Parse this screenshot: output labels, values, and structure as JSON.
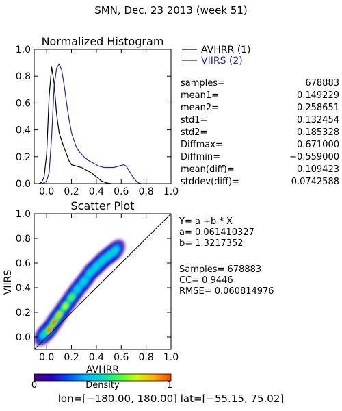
{
  "title": "SMN,  Dec. 23 2013 (week 51)",
  "colors": {
    "avhrr": "#000000",
    "viirs": "#2020c0",
    "axis": "#000000"
  },
  "chart_data": [
    {
      "type": "line",
      "title": "Normalized Histogram",
      "xlabel": "",
      "ylabel": "",
      "xlim": [
        -0.1,
        1.0
      ],
      "ylim": [
        0.0,
        1.0
      ],
      "xticks": [
        "0.0",
        "0.2",
        "0.4",
        "0.6",
        "0.8",
        "1.0"
      ],
      "yticks": [
        "0.0",
        "0.2",
        "0.4",
        "0.6",
        "0.8",
        "1.0"
      ],
      "legend_position": "right",
      "series": [
        {
          "name": "AVHRR (1)",
          "x": [
            -0.06,
            -0.04,
            -0.02,
            0.0,
            0.02,
            0.04,
            0.06,
            0.08,
            0.1,
            0.12,
            0.14,
            0.16,
            0.18,
            0.2,
            0.24,
            0.28,
            0.32,
            0.36,
            0.4,
            0.44,
            0.48,
            0.52
          ],
          "y": [
            0.0,
            0.01,
            0.05,
            0.22,
            0.65,
            0.87,
            0.75,
            0.52,
            0.38,
            0.32,
            0.27,
            0.22,
            0.17,
            0.14,
            0.13,
            0.12,
            0.1,
            0.08,
            0.05,
            0.02,
            0.005,
            0.0
          ]
        },
        {
          "name": "VIIRS (2)",
          "x": [
            -0.04,
            -0.02,
            0.0,
            0.02,
            0.04,
            0.06,
            0.08,
            0.1,
            0.12,
            0.14,
            0.16,
            0.18,
            0.2,
            0.22,
            0.24,
            0.26,
            0.28,
            0.3,
            0.34,
            0.38,
            0.42,
            0.46,
            0.5,
            0.54,
            0.58,
            0.62,
            0.64,
            0.66,
            0.68,
            0.7,
            0.72,
            0.74,
            0.76
          ],
          "y": [
            0.0,
            0.005,
            0.02,
            0.08,
            0.35,
            0.72,
            0.86,
            0.89,
            0.85,
            0.74,
            0.6,
            0.48,
            0.38,
            0.32,
            0.27,
            0.24,
            0.22,
            0.2,
            0.17,
            0.15,
            0.13,
            0.12,
            0.12,
            0.12,
            0.13,
            0.14,
            0.13,
            0.1,
            0.07,
            0.04,
            0.02,
            0.005,
            0.0
          ]
        }
      ]
    },
    {
      "type": "heatmap",
      "title": "Scatter Plot",
      "xlabel": "AVHRR",
      "ylabel": "VIIRS",
      "xlim": [
        -0.1,
        1.0
      ],
      "ylim": [
        -0.1,
        1.0
      ],
      "xticks": [
        "0.0",
        "0.2",
        "0.4",
        "0.6",
        "0.8",
        "1.0"
      ],
      "yticks": [
        "0.0",
        "0.2",
        "0.4",
        "0.6",
        "0.8",
        "1.0"
      ],
      "reference_line": "1:1 diagonal",
      "density_ridge": {
        "x": [
          -0.02,
          0.02,
          0.06,
          0.1,
          0.15,
          0.2,
          0.25,
          0.3,
          0.35,
          0.4,
          0.45,
          0.5,
          0.55
        ],
        "y": [
          0.02,
          0.06,
          0.12,
          0.18,
          0.25,
          0.32,
          0.39,
          0.45,
          0.52,
          0.57,
          0.62,
          0.66,
          0.7
        ]
      },
      "colorbar": {
        "label": "Density",
        "min_label": "0",
        "max_label": "1",
        "colors": [
          "#4b007d",
          "#2a00c8",
          "#0050ff",
          "#00b4ff",
          "#00e0c0",
          "#40ff40",
          "#d0ff00",
          "#ffb000",
          "#ff4000"
        ]
      }
    }
  ],
  "stats": [
    {
      "label": "samples=",
      "value": "678883"
    },
    {
      "label": "mean1=",
      "value": "0.149229"
    },
    {
      "label": "mean2=",
      "value": "0.258651"
    },
    {
      "label": "std1=",
      "value": "0.132454"
    },
    {
      "label": "std2=",
      "value": "0.185328"
    },
    {
      "label": "Diffmax=",
      "value": "0.671000"
    },
    {
      "label": "Diffmin=",
      "value": "−0.559000"
    },
    {
      "label": "mean(diff)=",
      "value": "0.109423"
    },
    {
      "label": "stddev(diff)=",
      "value": "0.0742588"
    }
  ],
  "regression": {
    "equation": "Y= a +b * X",
    "a": "a= 0.061410327",
    "b": "b= 1.3217352",
    "samples": "Samples= 678883",
    "cc": "CC=  0.9446",
    "rmse": "RMSE= 0.060814976"
  },
  "footer": "lon=[−180.00, 180.00] lat=[−55.15, 75.02]"
}
